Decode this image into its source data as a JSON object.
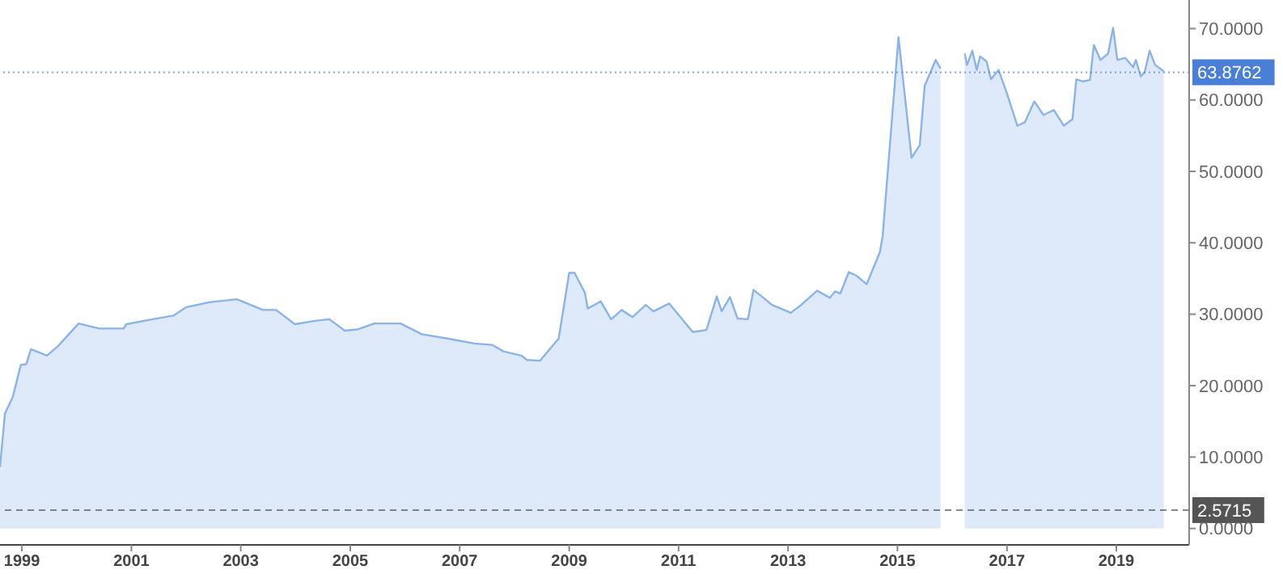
{
  "chart_data": {
    "type": "area",
    "x": [
      "1998-08-08",
      "1998-09-10",
      "1998-11-01",
      "1998-12-25",
      "1999-01-30",
      "1999-03-03",
      "1999-06-17",
      "1999-08-29",
      "2000-01-15",
      "2000-06-01",
      "2000-11-10",
      "2000-11-28",
      "2001-05-22",
      "2001-10-08",
      "2002-01-04",
      "2002-06-13",
      "2002-12-05",
      "2003-05-30",
      "2003-08-25",
      "2003-12-28",
      "2004-05-19",
      "2004-08-15",
      "2004-11-25",
      "2005-02-24",
      "2005-06-10",
      "2005-12-02",
      "2006-04-23",
      "2006-10-12",
      "2007-04-09",
      "2007-08-08",
      "2007-10-20",
      "2008-02-17",
      "2008-03-25",
      "2008-06-21",
      "2008-10-23",
      "2009-01-01",
      "2009-02-06",
      "2009-04-16",
      "2009-05-05",
      "2009-07-31",
      "2009-10-08",
      "2009-12-17",
      "2010-02-28",
      "2010-05-27",
      "2010-07-17",
      "2010-10-31",
      "2011-04-06",
      "2011-07-06",
      "2011-09-13",
      "2011-10-16",
      "2011-12-10",
      "2012-01-30",
      "2012-04-08",
      "2012-05-15",
      "2012-07-09",
      "2012-09-16",
      "2013-01-19",
      "2013-03-29",
      "2013-07-13",
      "2013-10-08",
      "2013-11-10",
      "2013-12-16",
      "2014-02-10",
      "2014-04-02",
      "2014-06-10",
      "2014-09-06",
      "2014-09-24",
      "2015-01-08",
      "2015-04-05",
      "2015-05-30",
      "2015-07-02",
      "2015-09-13",
      "2015-10-16",
      "2015-12-28",
      "2016-02-10",
      "2016-03-25",
      "2016-04-09",
      "2016-05-15",
      "2016-06-13",
      "2016-07-05",
      "2016-08-18",
      "2016-09-16",
      "2016-11-06",
      "2017-01-01",
      "2017-03-11",
      "2017-05-01",
      "2017-07-02",
      "2017-09-02",
      "2017-11-10",
      "2018-01-15",
      "2018-03-14",
      "2018-04-09",
      "2018-05-23",
      "2018-07-09",
      "2018-08-04",
      "2018-09-17",
      "2018-11-07",
      "2018-12-10",
      "2019-01-08",
      "2019-02-28",
      "2019-04-23",
      "2019-05-11",
      "2019-06-13",
      "2019-07-09",
      "2019-08-11",
      "2019-09-17",
      "2019-11-14"
    ],
    "series": [
      {
        "color": "#8ab4e8",
        "values": [
          8.6,
          16.1,
          18.4,
          22.9,
          23.0,
          25.1,
          24.2,
          25.5,
          28.7,
          28.0,
          28.0,
          28.6,
          29.3,
          29.8,
          31.0,
          31.7,
          32.1,
          30.6,
          30.6,
          28.6,
          29.1,
          29.3,
          27.7,
          27.9,
          28.7,
          28.7,
          27.2,
          26.6,
          25.9,
          25.7,
          24.8,
          24.2,
          23.6,
          23.5,
          26.6,
          35.8,
          35.8,
          33.0,
          30.8,
          31.8,
          29.3,
          30.6,
          29.6,
          31.3,
          30.4,
          31.5,
          27.5,
          27.8,
          32.5,
          30.4,
          32.4,
          29.4,
          29.3,
          33.4,
          32.5,
          31.3,
          30.2,
          31.3,
          33.3,
          32.3,
          33.2,
          32.9,
          35.9,
          35.4,
          34.2,
          38.7,
          40.9,
          68.8,
          51.9,
          53.7,
          62.0,
          65.6,
          64.4,
          null,
          null,
          66.5,
          64.9,
          66.9,
          64.2,
          66.1,
          65.4,
          62.9,
          64.2,
          60.9,
          56.4,
          56.9,
          59.8,
          57.9,
          58.6,
          56.4,
          57.3,
          62.9,
          62.6,
          62.8,
          67.7,
          65.6,
          66.5,
          70.1,
          65.6,
          65.9,
          64.6,
          65.6,
          63.3,
          63.9,
          66.9,
          64.9,
          64.0
        ]
      }
    ],
    "xlim": [
      "1998-08-08",
      "2020-05-01"
    ],
    "xticks": [
      "1999",
      "2001",
      "2003",
      "2005",
      "2007",
      "2009",
      "2011",
      "2013",
      "2015",
      "2017",
      "2019"
    ],
    "ylim": [
      -2.3,
      74
    ],
    "yticks": [
      {
        "value": 0,
        "label": "0.0000"
      },
      {
        "value": 10,
        "label": "10.0000"
      },
      {
        "value": 20,
        "label": "20.0000"
      },
      {
        "value": 30,
        "label": "30.0000"
      },
      {
        "value": 40,
        "label": "40.0000"
      },
      {
        "value": 50,
        "label": "50.0000"
      },
      {
        "value": 60,
        "label": "60.0000"
      },
      {
        "value": 70,
        "label": "70.0000"
      }
    ],
    "ref_lines": [
      {
        "axis": "y",
        "value": 63.8762,
        "label": "63.8762",
        "color": "#4a7fd8",
        "line_style": "dotted"
      },
      {
        "axis": "y",
        "value": 2.5715,
        "label": "2.5715",
        "color": "#555555",
        "line_style": "dashed"
      }
    ],
    "line_style": "solid",
    "grid": false,
    "legend": false
  }
}
